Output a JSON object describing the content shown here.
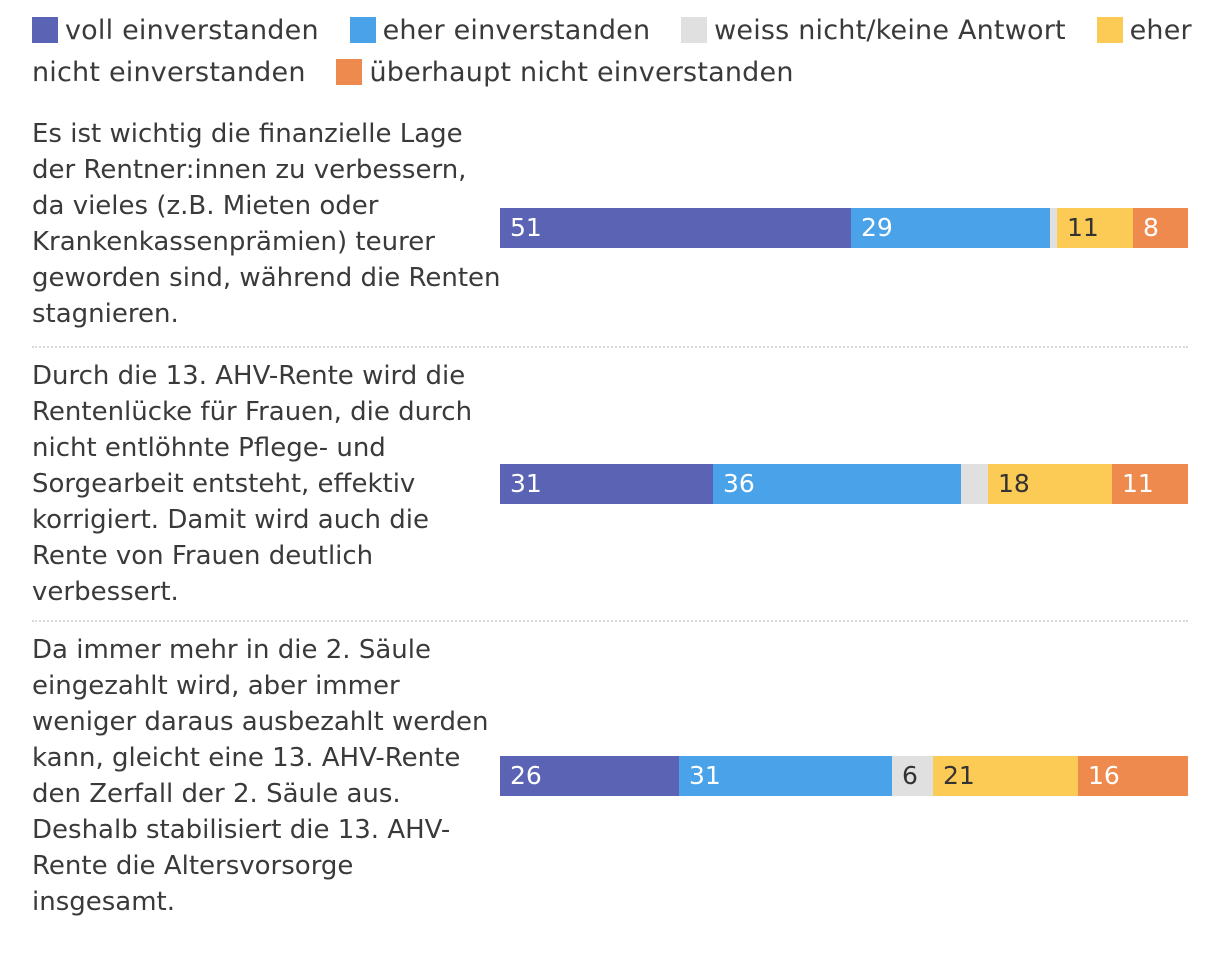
{
  "chart_data": {
    "type": "bar",
    "orientation": "horizontal",
    "stacked": true,
    "legend_position": "top",
    "categories": [
      "Es ist wichtig die finanzielle Lage der Rentner:innen zu verbessern, da vieles (z.B. Mieten oder Krankenkassenprämien) teurer geworden sind, während die Renten stagnieren.",
      "Durch die 13. AHV-Rente wird die Rentenlücke für Frauen, die durch nicht entlöhnte Pflege- und Sorgearbeit entsteht, effektiv korrigiert. Damit wird auch die Rente von Frauen deutlich verbessert.",
      "Da immer mehr in die 2. Säule eingezahlt wird, aber immer weniger daraus ausbezahlt werden kann, gleicht eine 13. AHV-Rente den Zerfall der 2. Säule aus. Deshalb stabilisiert die 13. AHV-Rente die Altersvorsorge insgesamt."
    ],
    "series": [
      {
        "name": "voll einverstanden",
        "color": "#5b63b5",
        "label_color": "#ffffff",
        "values": [
          51,
          31,
          26
        ],
        "labels": [
          "51",
          "31",
          "26"
        ]
      },
      {
        "name": "eher einverstanden",
        "color": "#4aa3e8",
        "label_color": "#ffffff",
        "values": [
          29,
          36,
          31
        ],
        "labels": [
          "29",
          "36",
          "31"
        ]
      },
      {
        "name": "weiss nicht/keine Antwort",
        "color": "#e0e0e0",
        "label_color": "#333333",
        "values": [
          1,
          4,
          6
        ],
        "labels": [
          "",
          "",
          "6"
        ]
      },
      {
        "name": "eher nicht einverstanden",
        "color": "#fccb55",
        "label_color": "#333333",
        "values": [
          11,
          18,
          21
        ],
        "labels": [
          "11",
          "18",
          "21"
        ]
      },
      {
        "name": "überhaupt nicht einverstanden",
        "color": "#ef8a4e",
        "label_color": "#ffffff",
        "values": [
          8,
          11,
          16
        ],
        "labels": [
          "8",
          "11",
          "16"
        ]
      }
    ]
  }
}
